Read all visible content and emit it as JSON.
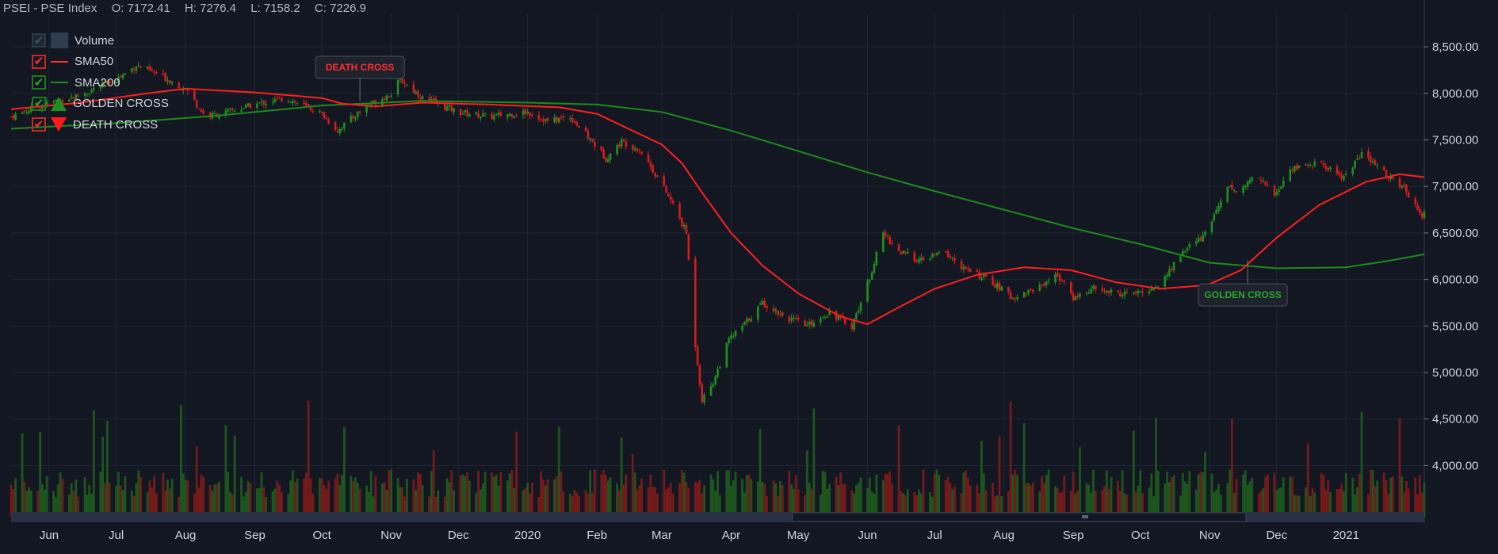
{
  "header": {
    "symbol": "PSEI - PSE Index",
    "open": "O: 7172.41",
    "high": "H: 7276.4",
    "low": "L: 7158.2",
    "close": "C: 7226.9"
  },
  "legend": [
    {
      "label": "Volume",
      "kind": "box"
    },
    {
      "label": "SMA50",
      "kind": "line-red"
    },
    {
      "label": "SMA200",
      "kind": "line-green"
    },
    {
      "label": "GOLDEN CROSS",
      "kind": "tri-up"
    },
    {
      "label": "DEATH CROSS",
      "kind": "tri-down"
    }
  ],
  "colors": {
    "background": "#131722",
    "up": "#1f8f1f",
    "down": "#d41c1c",
    "sma50": "#ff1f1f",
    "sma200": "#1e8a1e",
    "grid": "#1f2536",
    "axis_text": "#d1d4dc"
  },
  "chart_data": {
    "type": "line",
    "title": "PSEI - PSE Index",
    "yaxis": {
      "ticks": [
        4000,
        4500,
        5000,
        5500,
        6000,
        6500,
        7000,
        7500,
        8000,
        8500
      ],
      "tick_labels": [
        "4,000.00",
        "4,500.00",
        "5,000.00",
        "5,500.00",
        "6,000.00",
        "6,500.00",
        "7,000.00",
        "7,500.00",
        "8,000.00",
        "8,500.00"
      ],
      "range": [
        3450,
        8850
      ],
      "position": "right"
    },
    "xaxis": {
      "labels": [
        "Jun",
        "Jul",
        "Aug",
        "Sep",
        "Oct",
        "Nov",
        "Dec",
        "2020",
        "Feb",
        "Mar",
        "Apr",
        "May",
        "Jun",
        "Jul",
        "Aug",
        "Sep",
        "Oct",
        "Nov",
        "Dec",
        "2021"
      ],
      "label_dates": [
        "2019-06-01",
        "2019-07-01",
        "2019-08-01",
        "2019-09-01",
        "2019-10-01",
        "2019-11-01",
        "2019-12-01",
        "2020-01-01",
        "2020-02-01",
        "2020-03-01",
        "2020-04-01",
        "2020-05-01",
        "2020-06-01",
        "2020-07-01",
        "2020-08-01",
        "2020-09-01",
        "2020-10-01",
        "2020-11-01",
        "2020-12-01",
        "2021-01-01"
      ],
      "range": [
        "2019-05-15",
        "2021-02-05"
      ]
    },
    "price_series": [
      {
        "date": "2019-05-15",
        "close": 7750
      },
      {
        "date": "2019-06-01",
        "close": 7900
      },
      {
        "date": "2019-06-15",
        "close": 7980
      },
      {
        "date": "2019-07-01",
        "close": 8150
      },
      {
        "date": "2019-07-10",
        "close": 8300
      },
      {
        "date": "2019-07-20",
        "close": 8200
      },
      {
        "date": "2019-08-01",
        "close": 8050
      },
      {
        "date": "2019-08-10",
        "close": 7750
      },
      {
        "date": "2019-08-20",
        "close": 7800
      },
      {
        "date": "2019-09-01",
        "close": 7880
      },
      {
        "date": "2019-09-15",
        "close": 7950
      },
      {
        "date": "2019-10-01",
        "close": 7780
      },
      {
        "date": "2019-10-08",
        "close": 7600
      },
      {
        "date": "2019-10-20",
        "close": 7850
      },
      {
        "date": "2019-11-01",
        "close": 8000
      },
      {
        "date": "2019-11-05",
        "close": 8150
      },
      {
        "date": "2019-11-15",
        "close": 7950
      },
      {
        "date": "2019-12-01",
        "close": 7800
      },
      {
        "date": "2019-12-15",
        "close": 7750
      },
      {
        "date": "2020-01-01",
        "close": 7800
      },
      {
        "date": "2020-01-10",
        "close": 7700
      },
      {
        "date": "2020-01-20",
        "close": 7750
      },
      {
        "date": "2020-01-31",
        "close": 7450
      },
      {
        "date": "2020-02-05",
        "close": 7300
      },
      {
        "date": "2020-02-12",
        "close": 7480
      },
      {
        "date": "2020-02-20",
        "close": 7400
      },
      {
        "date": "2020-02-28",
        "close": 7100
      },
      {
        "date": "2020-03-05",
        "close": 6850
      },
      {
        "date": "2020-03-12",
        "close": 6500
      },
      {
        "date": "2020-03-16",
        "close": 5300
      },
      {
        "date": "2020-03-19",
        "close": 4700
      },
      {
        "date": "2020-03-24",
        "close": 4900
      },
      {
        "date": "2020-03-31",
        "close": 5350
      },
      {
        "date": "2020-04-08",
        "close": 5550
      },
      {
        "date": "2020-04-15",
        "close": 5750
      },
      {
        "date": "2020-04-25",
        "close": 5600
      },
      {
        "date": "2020-05-05",
        "close": 5500
      },
      {
        "date": "2020-05-15",
        "close": 5650
      },
      {
        "date": "2020-05-25",
        "close": 5500
      },
      {
        "date": "2020-06-01",
        "close": 5950
      },
      {
        "date": "2020-06-08",
        "close": 6500
      },
      {
        "date": "2020-06-15",
        "close": 6300
      },
      {
        "date": "2020-06-25",
        "close": 6200
      },
      {
        "date": "2020-07-05",
        "close": 6300
      },
      {
        "date": "2020-07-15",
        "close": 6100
      },
      {
        "date": "2020-07-25",
        "close": 6000
      },
      {
        "date": "2020-08-05",
        "close": 5800
      },
      {
        "date": "2020-08-15",
        "close": 5900
      },
      {
        "date": "2020-08-25",
        "close": 6050
      },
      {
        "date": "2020-09-01",
        "close": 5800
      },
      {
        "date": "2020-09-10",
        "close": 5900
      },
      {
        "date": "2020-09-20",
        "close": 5850
      },
      {
        "date": "2020-10-01",
        "close": 5850
      },
      {
        "date": "2020-10-10",
        "close": 5950
      },
      {
        "date": "2020-10-20",
        "close": 6300
      },
      {
        "date": "2020-10-31",
        "close": 6500
      },
      {
        "date": "2020-11-08",
        "close": 7000
      },
      {
        "date": "2020-11-15",
        "close": 6950
      },
      {
        "date": "2020-11-22",
        "close": 7150
      },
      {
        "date": "2020-11-30",
        "close": 6900
      },
      {
        "date": "2020-12-08",
        "close": 7200
      },
      {
        "date": "2020-12-20",
        "close": 7250
      },
      {
        "date": "2020-12-31",
        "close": 7100
      },
      {
        "date": "2021-01-08",
        "close": 7350
      },
      {
        "date": "2021-01-18",
        "close": 7150
      },
      {
        "date": "2021-01-28",
        "close": 6950
      },
      {
        "date": "2021-02-04",
        "close": 6700
      }
    ],
    "series": [
      {
        "name": "SMA50",
        "points": [
          {
            "date": "2019-05-15",
            "value": 7830
          },
          {
            "date": "2019-06-15",
            "value": 7900
          },
          {
            "date": "2019-07-15",
            "value": 8000
          },
          {
            "date": "2019-08-01",
            "value": 8050
          },
          {
            "date": "2019-09-01",
            "value": 8010
          },
          {
            "date": "2019-10-01",
            "value": 7950
          },
          {
            "date": "2019-10-10",
            "value": 7890
          },
          {
            "date": "2019-10-25",
            "value": 7860
          },
          {
            "date": "2019-11-15",
            "value": 7900
          },
          {
            "date": "2019-12-15",
            "value": 7880
          },
          {
            "date": "2020-01-15",
            "value": 7850
          },
          {
            "date": "2020-02-01",
            "value": 7780
          },
          {
            "date": "2020-02-15",
            "value": 7620
          },
          {
            "date": "2020-03-01",
            "value": 7450
          },
          {
            "date": "2020-03-10",
            "value": 7250
          },
          {
            "date": "2020-03-20",
            "value": 6900
          },
          {
            "date": "2020-04-01",
            "value": 6500
          },
          {
            "date": "2020-04-15",
            "value": 6150
          },
          {
            "date": "2020-05-01",
            "value": 5850
          },
          {
            "date": "2020-05-20",
            "value": 5600
          },
          {
            "date": "2020-06-01",
            "value": 5520
          },
          {
            "date": "2020-06-15",
            "value": 5700
          },
          {
            "date": "2020-07-01",
            "value": 5900
          },
          {
            "date": "2020-07-20",
            "value": 6050
          },
          {
            "date": "2020-08-10",
            "value": 6130
          },
          {
            "date": "2020-08-31",
            "value": 6100
          },
          {
            "date": "2020-09-20",
            "value": 5970
          },
          {
            "date": "2020-10-10",
            "value": 5900
          },
          {
            "date": "2020-10-31",
            "value": 5940
          },
          {
            "date": "2020-11-15",
            "value": 6100
          },
          {
            "date": "2020-12-01",
            "value": 6450
          },
          {
            "date": "2020-12-20",
            "value": 6800
          },
          {
            "date": "2021-01-10",
            "value": 7050
          },
          {
            "date": "2021-01-25",
            "value": 7130
          },
          {
            "date": "2021-02-05",
            "value": 7100
          }
        ]
      },
      {
        "name": "SMA200",
        "points": [
          {
            "date": "2019-05-15",
            "value": 7620
          },
          {
            "date": "2019-07-01",
            "value": 7680
          },
          {
            "date": "2019-08-15",
            "value": 7760
          },
          {
            "date": "2019-10-01",
            "value": 7870
          },
          {
            "date": "2019-11-15",
            "value": 7920
          },
          {
            "date": "2020-01-01",
            "value": 7900
          },
          {
            "date": "2020-02-01",
            "value": 7880
          },
          {
            "date": "2020-03-01",
            "value": 7800
          },
          {
            "date": "2020-04-01",
            "value": 7600
          },
          {
            "date": "2020-05-01",
            "value": 7380
          },
          {
            "date": "2020-06-01",
            "value": 7150
          },
          {
            "date": "2020-07-01",
            "value": 6950
          },
          {
            "date": "2020-08-01",
            "value": 6750
          },
          {
            "date": "2020-09-01",
            "value": 6550
          },
          {
            "date": "2020-10-01",
            "value": 6380
          },
          {
            "date": "2020-11-01",
            "value": 6180
          },
          {
            "date": "2020-12-01",
            "value": 6120
          },
          {
            "date": "2021-01-01",
            "value": 6130
          },
          {
            "date": "2021-01-20",
            "value": 6200
          },
          {
            "date": "2021-02-05",
            "value": 6270
          }
        ]
      }
    ],
    "annotations": [
      {
        "label": "DEATH CROSS",
        "date": "2019-10-18",
        "value": 7870,
        "color": "#ff2d2d"
      },
      {
        "label": "GOLDEN CROSS",
        "date": "2020-11-18",
        "value": 6260,
        "color": "#2aa52a"
      }
    ],
    "volume_baseline": 3450
  }
}
